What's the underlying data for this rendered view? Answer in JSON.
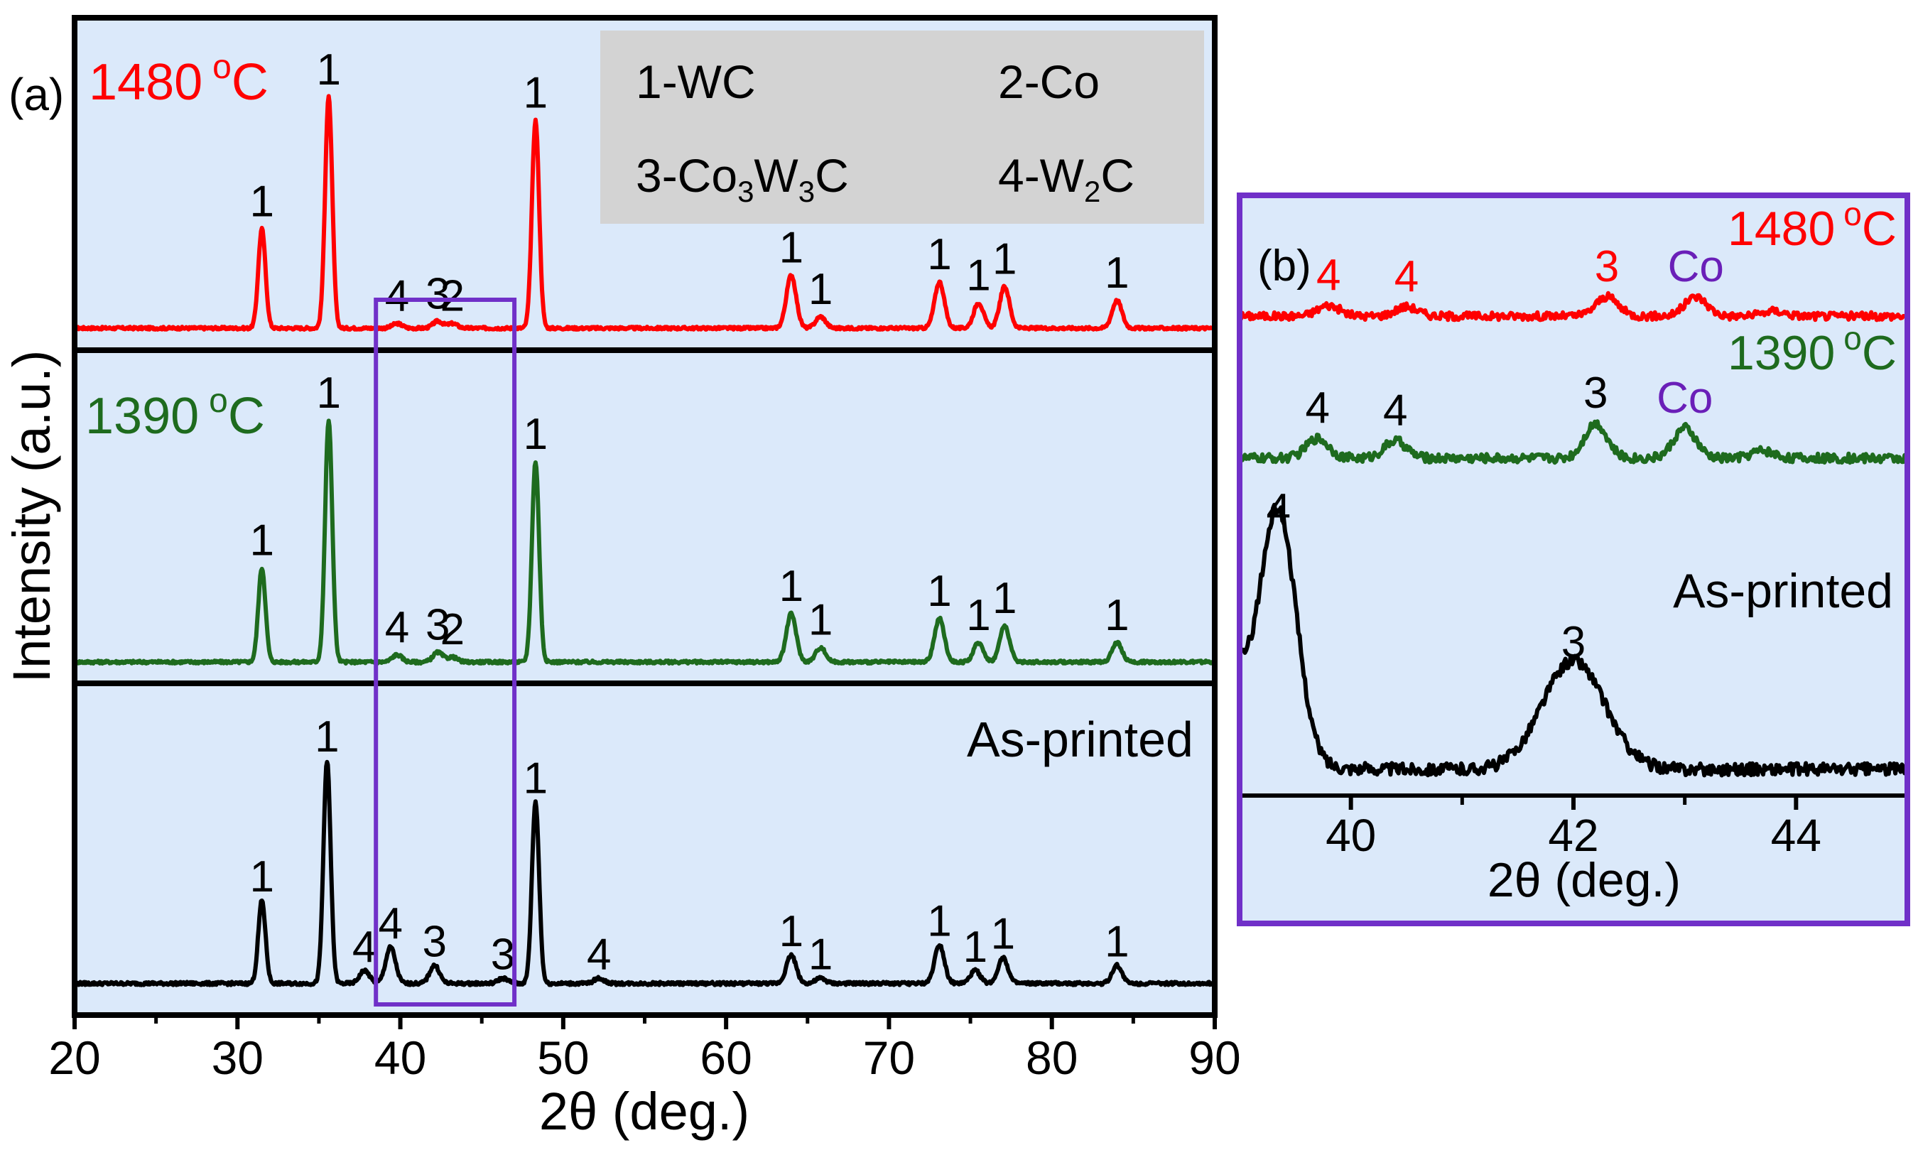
{
  "chart_data": [
    {
      "panel_label": "(a)",
      "type": "line",
      "xlabel": "2θ (deg.)",
      "ylabel": "Intensity (a.u.)",
      "xlim": [
        20,
        90
      ],
      "x_ticks": [
        "20",
        "30",
        "40",
        "50",
        "60",
        "70",
        "80",
        "90"
      ],
      "legend_box": {
        "entries": [
          {
            "number": "1",
            "phase": "WC",
            "text": "1-WC"
          },
          {
            "number": "2",
            "phase": "Co",
            "text": "2-Co"
          },
          {
            "number": "3",
            "phase": "Co3W3C",
            "prefix": "3-Co",
            "sub1": "3",
            "mid": "W",
            "sub2": "3",
            "suffix": "C"
          },
          {
            "number": "4",
            "phase": "W2C",
            "prefix": "4-W",
            "sub1": "2",
            "suffix": "C"
          }
        ]
      },
      "highlight_range": [
        38.5,
        47
      ],
      "series": [
        {
          "name": "1480 °C",
          "temp": "1480",
          "deg": "o",
          "unit": "C",
          "color": "#ff0000",
          "peaks": [
            {
              "x": 31.5,
              "h": 0.43,
              "label": "1"
            },
            {
              "x": 35.6,
              "h": 1.0,
              "label": "1"
            },
            {
              "x": 39.8,
              "h": 0.02,
              "label": "4"
            },
            {
              "x": 42.3,
              "h": 0.03,
              "label": "3"
            },
            {
              "x": 43.2,
              "h": 0.02,
              "label": "2"
            },
            {
              "x": 48.3,
              "h": 0.9,
              "label": "1"
            },
            {
              "x": 64.0,
              "h": 0.23,
              "label": "1"
            },
            {
              "x": 65.8,
              "h": 0.05,
              "label": "1"
            },
            {
              "x": 73.1,
              "h": 0.2,
              "label": "1"
            },
            {
              "x": 75.5,
              "h": 0.11,
              "label": "1"
            },
            {
              "x": 77.1,
              "h": 0.18,
              "label": "1"
            },
            {
              "x": 84.0,
              "h": 0.12,
              "label": "1"
            }
          ]
        },
        {
          "name": "1390 °C",
          "temp": "1390",
          "deg": "o",
          "unit": "C",
          "color": "#1e6b1e",
          "peaks": [
            {
              "x": 31.5,
              "h": 0.39,
              "label": "1"
            },
            {
              "x": 35.6,
              "h": 1.0,
              "label": "1"
            },
            {
              "x": 39.8,
              "h": 0.03,
              "label": "4"
            },
            {
              "x": 42.3,
              "h": 0.04,
              "label": "3"
            },
            {
              "x": 43.2,
              "h": 0.02,
              "label": "2"
            },
            {
              "x": 48.3,
              "h": 0.83,
              "label": "1"
            },
            {
              "x": 64.0,
              "h": 0.2,
              "label": "1"
            },
            {
              "x": 65.8,
              "h": 0.06,
              "label": "1"
            },
            {
              "x": 73.1,
              "h": 0.18,
              "label": "1"
            },
            {
              "x": 75.5,
              "h": 0.08,
              "label": "1"
            },
            {
              "x": 77.1,
              "h": 0.15,
              "label": "1"
            },
            {
              "x": 84.0,
              "h": 0.08,
              "label": "1"
            }
          ]
        },
        {
          "name": "As-printed",
          "color": "#000000",
          "peaks": [
            {
              "x": 31.5,
              "h": 0.32,
              "label": "1"
            },
            {
              "x": 35.5,
              "h": 0.86,
              "label": "1"
            },
            {
              "x": 37.8,
              "h": 0.05,
              "label": "4"
            },
            {
              "x": 39.4,
              "h": 0.14,
              "label": "4"
            },
            {
              "x": 42.1,
              "h": 0.07,
              "label": "3"
            },
            {
              "x": 46.3,
              "h": 0.02,
              "label": "3"
            },
            {
              "x": 48.3,
              "h": 0.7,
              "label": "1"
            },
            {
              "x": 52.2,
              "h": 0.02,
              "label": "4"
            },
            {
              "x": 64.0,
              "h": 0.11,
              "label": "1"
            },
            {
              "x": 65.8,
              "h": 0.02,
              "label": "1"
            },
            {
              "x": 73.1,
              "h": 0.15,
              "label": "1"
            },
            {
              "x": 75.3,
              "h": 0.05,
              "label": "1"
            },
            {
              "x": 77.0,
              "h": 0.1,
              "label": "1"
            },
            {
              "x": 84.0,
              "h": 0.07,
              "label": "1"
            }
          ]
        }
      ]
    },
    {
      "panel_label": "(b)",
      "type": "line",
      "xlabel": "2θ (deg.)",
      "xlim": [
        39,
        45
      ],
      "x_ticks": [
        "40",
        "42",
        "44"
      ],
      "series": [
        {
          "name": "1480 °C",
          "temp": "1480",
          "deg": "o",
          "unit": "C",
          "color": "#ff0000",
          "peaks": [
            {
              "x": 39.8,
              "h": 0.25,
              "label": "4",
              "label_color": "#ff0000"
            },
            {
              "x": 40.5,
              "h": 0.22,
              "label": "4",
              "label_color": "#ff0000"
            },
            {
              "x": 42.3,
              "h": 0.45,
              "label": "3",
              "label_color": "#ff0000"
            },
            {
              "x": 43.1,
              "h": 0.45,
              "label": "Co",
              "label_color": "#6a1fb8"
            },
            {
              "x": 43.8,
              "h": 0.12,
              "label": ""
            }
          ]
        },
        {
          "name": "1390 °C",
          "temp": "1390",
          "deg": "o",
          "unit": "C",
          "color": "#1e6b1e",
          "peaks": [
            {
              "x": 39.7,
              "h": 0.4,
              "label": "4",
              "label_color": "#000000"
            },
            {
              "x": 40.4,
              "h": 0.35,
              "label": "4",
              "label_color": "#000000"
            },
            {
              "x": 42.2,
              "h": 0.7,
              "label": "3",
              "label_color": "#000000"
            },
            {
              "x": 43.0,
              "h": 0.6,
              "label": "Co",
              "label_color": "#6a1fb8"
            },
            {
              "x": 43.7,
              "h": 0.15,
              "label": ""
            }
          ]
        },
        {
          "name": "As-printed",
          "color": "#000000",
          "peaks": [
            {
              "x": 39.35,
              "h": 1.0,
              "label": "4",
              "label_color": "#000000"
            },
            {
              "x": 42.0,
              "h": 0.45,
              "label": "3",
              "label_color": "#000000"
            }
          ]
        }
      ]
    }
  ],
  "colors": {
    "panel_background": "#dbe9fa",
    "legend_background": "#d3d3d3",
    "highlight_box": "#7030c8",
    "axis": "#000000",
    "co_label": "#6a1fb8"
  }
}
